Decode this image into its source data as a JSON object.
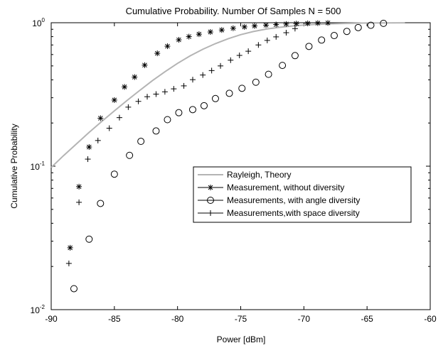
{
  "chart_data": {
    "type": "scatter",
    "title": "Cumulative Probability. Number Of Samples N =    500",
    "xlabel": "Power [dBm]",
    "ylabel": "Cumulative Probability",
    "xlim": [
      -90,
      -60
    ],
    "ylim": [
      0.01,
      1
    ],
    "yscale": "log",
    "grid": false,
    "legend_position": "right",
    "x_ticks": [
      "-90",
      "-85",
      "-80",
      "-75",
      "-70",
      "-65",
      "-60"
    ],
    "x_tick_values": [
      -90,
      -85,
      -80,
      -75,
      -70,
      -65,
      -60
    ],
    "y_ticks": [
      {
        "base": "10",
        "exp": "0",
        "value": 1
      },
      {
        "base": "10",
        "exp": "-1",
        "value": 0.1
      },
      {
        "base": "10",
        "exp": "-2",
        "value": 0.01
      }
    ],
    "series": [
      {
        "name": "Rayleigh, Theory",
        "style": "line",
        "color": "#b4b4b4",
        "x": [
          -90,
          -89,
          -88,
          -87,
          -86,
          -85,
          -84,
          -83,
          -82,
          -81,
          -80,
          -79,
          -78,
          -77,
          -76,
          -75,
          -74,
          -73,
          -72,
          -71,
          -70,
          -69,
          -68,
          -67,
          -66,
          -65,
          -64,
          -63.6,
          -62
        ],
        "y": [
          0.098,
          0.119,
          0.143,
          0.172,
          0.205,
          0.243,
          0.287,
          0.337,
          0.394,
          0.455,
          0.521,
          0.588,
          0.653,
          0.715,
          0.773,
          0.826,
          0.868,
          0.902,
          0.928,
          0.948,
          0.963,
          0.974,
          0.982,
          0.988,
          0.992,
          0.995,
          0.997,
          0.998,
          0.999
        ]
      },
      {
        "name": "Measurement, without diversity",
        "marker": "star",
        "x": [
          -88.5,
          -87.8,
          -87.0,
          -86.1,
          -85.0,
          -84.2,
          -83.4,
          -82.6,
          -81.6,
          -80.8,
          -79.9,
          -79.1,
          -78.3,
          -77.4,
          -76.5,
          -75.6,
          -74.7,
          -73.9,
          -73.0,
          -72.2,
          -71.4,
          -70.6,
          -69.7,
          -68.9,
          -68.1
        ],
        "y": [
          0.027,
          0.072,
          0.136,
          0.216,
          0.289,
          0.357,
          0.418,
          0.506,
          0.612,
          0.686,
          0.76,
          0.8,
          0.832,
          0.862,
          0.89,
          0.915,
          0.935,
          0.95,
          0.962,
          0.972,
          0.98,
          0.986,
          0.99,
          0.994,
          0.997
        ]
      },
      {
        "name": "Measurements, with angle diversity",
        "marker": "circle",
        "x": [
          -88.2,
          -87.0,
          -86.1,
          -85.0,
          -83.8,
          -82.9,
          -81.7,
          -80.8,
          -79.9,
          -78.8,
          -77.9,
          -77.0,
          -75.9,
          -74.9,
          -73.8,
          -72.8,
          -71.7,
          -70.7,
          -69.6,
          -68.6,
          -67.6,
          -66.6,
          -65.7,
          -64.7,
          -63.7
        ],
        "y": [
          0.014,
          0.031,
          0.055,
          0.088,
          0.119,
          0.149,
          0.176,
          0.211,
          0.236,
          0.248,
          0.264,
          0.296,
          0.322,
          0.349,
          0.385,
          0.437,
          0.504,
          0.59,
          0.684,
          0.757,
          0.814,
          0.87,
          0.925,
          0.96,
          0.99
        ]
      },
      {
        "name": "Measurements,with space diversity",
        "marker": "plus",
        "x": [
          -88.6,
          -87.8,
          -87.1,
          -86.3,
          -85.4,
          -84.6,
          -83.9,
          -83.1,
          -82.4,
          -81.7,
          -81.0,
          -80.3,
          -79.5,
          -78.8,
          -78.0,
          -77.3,
          -76.6,
          -75.8,
          -75.1,
          -74.4,
          -73.6,
          -72.9,
          -72.2,
          -71.4,
          -70.7
        ],
        "y": [
          0.021,
          0.056,
          0.112,
          0.151,
          0.184,
          0.218,
          0.258,
          0.283,
          0.305,
          0.318,
          0.33,
          0.346,
          0.363,
          0.401,
          0.432,
          0.464,
          0.5,
          0.548,
          0.592,
          0.633,
          0.7,
          0.753,
          0.797,
          0.852,
          0.91
        ]
      }
    ]
  }
}
